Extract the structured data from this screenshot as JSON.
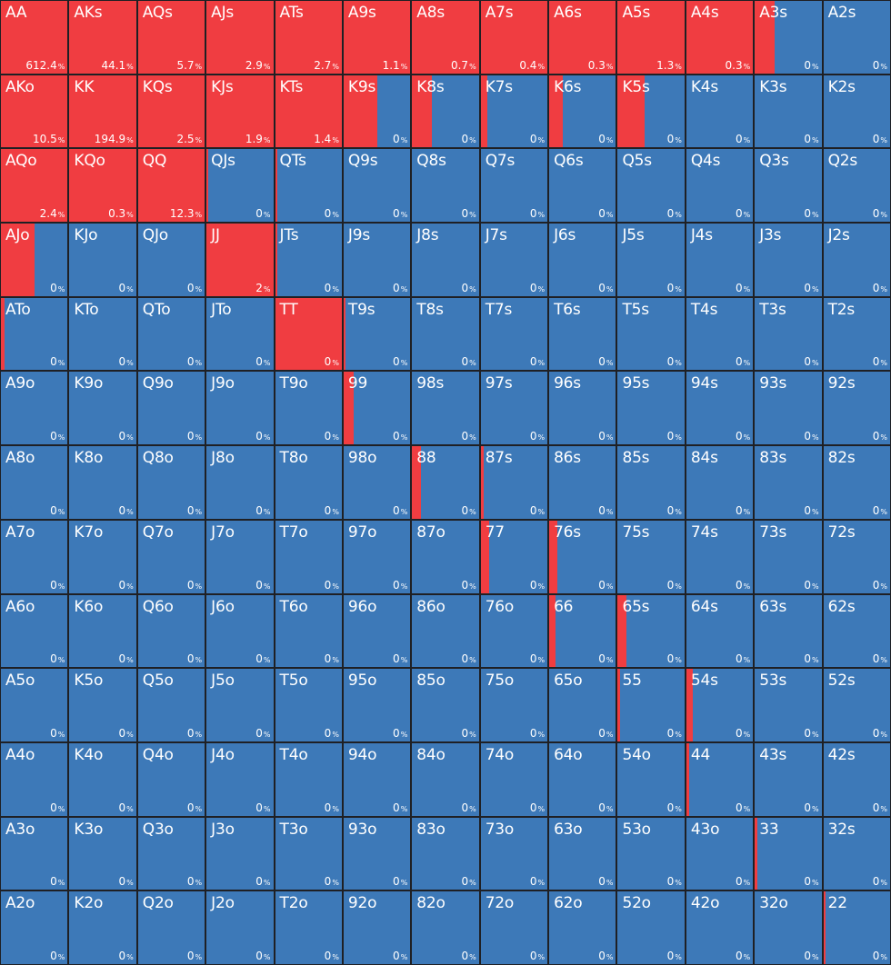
{
  "colors": {
    "action": "#f03d41",
    "other": "#3d79b8",
    "border": "#1f2024",
    "text": "#ffffff"
  },
  "percent_unit": "%",
  "rows": [
    [
      {
        "hand": "AA",
        "value": "612.4",
        "frac": 1
      },
      {
        "hand": "AKs",
        "value": "44.1",
        "frac": 1
      },
      {
        "hand": "AQs",
        "value": "5.7",
        "frac": 1
      },
      {
        "hand": "AJs",
        "value": "2.9",
        "frac": 1
      },
      {
        "hand": "ATs",
        "value": "2.7",
        "frac": 1
      },
      {
        "hand": "A9s",
        "value": "1.1",
        "frac": 1
      },
      {
        "hand": "A8s",
        "value": "0.7",
        "frac": 1
      },
      {
        "hand": "A7s",
        "value": "0.4",
        "frac": 1
      },
      {
        "hand": "A6s",
        "value": "0.3",
        "frac": 1
      },
      {
        "hand": "A5s",
        "value": "1.3",
        "frac": 1
      },
      {
        "hand": "A4s",
        "value": "0.3",
        "frac": 1
      },
      {
        "hand": "A3s",
        "value": "0",
        "frac": 0.3
      },
      {
        "hand": "A2s",
        "value": "0",
        "frac": 0
      }
    ],
    [
      {
        "hand": "AKo",
        "value": "10.5",
        "frac": 1
      },
      {
        "hand": "KK",
        "value": "194.9",
        "frac": 1
      },
      {
        "hand": "KQs",
        "value": "2.5",
        "frac": 1
      },
      {
        "hand": "KJs",
        "value": "1.9",
        "frac": 1
      },
      {
        "hand": "KTs",
        "value": "1.4",
        "frac": 1
      },
      {
        "hand": "K9s",
        "value": "0",
        "frac": 0.5
      },
      {
        "hand": "K8s",
        "value": "0",
        "frac": 0.3
      },
      {
        "hand": "K7s",
        "value": "0",
        "frac": 0.1
      },
      {
        "hand": "K6s",
        "value": "0",
        "frac": 0.2
      },
      {
        "hand": "K5s",
        "value": "0",
        "frac": 0.4
      },
      {
        "hand": "K4s",
        "value": "0",
        "frac": 0
      },
      {
        "hand": "K3s",
        "value": "0",
        "frac": 0
      },
      {
        "hand": "K2s",
        "value": "0",
        "frac": 0
      }
    ],
    [
      {
        "hand": "AQo",
        "value": "2.4",
        "frac": 1
      },
      {
        "hand": "KQo",
        "value": "0.3",
        "frac": 1
      },
      {
        "hand": "QQ",
        "value": "12.3",
        "frac": 1
      },
      {
        "hand": "QJs",
        "value": "0",
        "frac": 0.03
      },
      {
        "hand": "QTs",
        "value": "0",
        "frac": 0.03
      },
      {
        "hand": "Q9s",
        "value": "0",
        "frac": 0
      },
      {
        "hand": "Q8s",
        "value": "0",
        "frac": 0
      },
      {
        "hand": "Q7s",
        "value": "0",
        "frac": 0
      },
      {
        "hand": "Q6s",
        "value": "0",
        "frac": 0
      },
      {
        "hand": "Q5s",
        "value": "0",
        "frac": 0
      },
      {
        "hand": "Q4s",
        "value": "0",
        "frac": 0
      },
      {
        "hand": "Q3s",
        "value": "0",
        "frac": 0
      },
      {
        "hand": "Q2s",
        "value": "0",
        "frac": 0
      }
    ],
    [
      {
        "hand": "AJo",
        "value": "0",
        "frac": 0.5
      },
      {
        "hand": "KJo",
        "value": "0",
        "frac": 0
      },
      {
        "hand": "QJo",
        "value": "0",
        "frac": 0
      },
      {
        "hand": "JJ",
        "value": "2",
        "frac": 1
      },
      {
        "hand": "JTs",
        "value": "0",
        "frac": 0.03
      },
      {
        "hand": "J9s",
        "value": "0",
        "frac": 0
      },
      {
        "hand": "J8s",
        "value": "0",
        "frac": 0
      },
      {
        "hand": "J7s",
        "value": "0",
        "frac": 0
      },
      {
        "hand": "J6s",
        "value": "0",
        "frac": 0
      },
      {
        "hand": "J5s",
        "value": "0",
        "frac": 0
      },
      {
        "hand": "J4s",
        "value": "0",
        "frac": 0
      },
      {
        "hand": "J3s",
        "value": "0",
        "frac": 0
      },
      {
        "hand": "J2s",
        "value": "0",
        "frac": 0
      }
    ],
    [
      {
        "hand": "ATo",
        "value": "0",
        "frac": 0.06
      },
      {
        "hand": "KTo",
        "value": "0",
        "frac": 0
      },
      {
        "hand": "QTo",
        "value": "0",
        "frac": 0
      },
      {
        "hand": "JTo",
        "value": "0",
        "frac": 0
      },
      {
        "hand": "TT",
        "value": "0",
        "frac": 1
      },
      {
        "hand": "T9s",
        "value": "0",
        "frac": 0.03
      },
      {
        "hand": "T8s",
        "value": "0",
        "frac": 0
      },
      {
        "hand": "T7s",
        "value": "0",
        "frac": 0
      },
      {
        "hand": "T6s",
        "value": "0",
        "frac": 0
      },
      {
        "hand": "T5s",
        "value": "0",
        "frac": 0
      },
      {
        "hand": "T4s",
        "value": "0",
        "frac": 0
      },
      {
        "hand": "T3s",
        "value": "0",
        "frac": 0
      },
      {
        "hand": "T2s",
        "value": "0",
        "frac": 0
      }
    ],
    [
      {
        "hand": "A9o",
        "value": "0",
        "frac": 0
      },
      {
        "hand": "K9o",
        "value": "0",
        "frac": 0
      },
      {
        "hand": "Q9o",
        "value": "0",
        "frac": 0
      },
      {
        "hand": "J9o",
        "value": "0",
        "frac": 0
      },
      {
        "hand": "T9o",
        "value": "0",
        "frac": 0
      },
      {
        "hand": "99",
        "value": "0",
        "frac": 0.15
      },
      {
        "hand": "98s",
        "value": "0",
        "frac": 0
      },
      {
        "hand": "97s",
        "value": "0",
        "frac": 0
      },
      {
        "hand": "96s",
        "value": "0",
        "frac": 0
      },
      {
        "hand": "95s",
        "value": "0",
        "frac": 0
      },
      {
        "hand": "94s",
        "value": "0",
        "frac": 0
      },
      {
        "hand": "93s",
        "value": "0",
        "frac": 0
      },
      {
        "hand": "92s",
        "value": "0",
        "frac": 0
      }
    ],
    [
      {
        "hand": "A8o",
        "value": "0",
        "frac": 0
      },
      {
        "hand": "K8o",
        "value": "0",
        "frac": 0
      },
      {
        "hand": "Q8o",
        "value": "0",
        "frac": 0
      },
      {
        "hand": "J8o",
        "value": "0",
        "frac": 0
      },
      {
        "hand": "T8o",
        "value": "0",
        "frac": 0
      },
      {
        "hand": "98o",
        "value": "0",
        "frac": 0
      },
      {
        "hand": "88",
        "value": "0",
        "frac": 0.13
      },
      {
        "hand": "87s",
        "value": "0",
        "frac": 0.05
      },
      {
        "hand": "86s",
        "value": "0",
        "frac": 0
      },
      {
        "hand": "85s",
        "value": "0",
        "frac": 0
      },
      {
        "hand": "84s",
        "value": "0",
        "frac": 0
      },
      {
        "hand": "83s",
        "value": "0",
        "frac": 0
      },
      {
        "hand": "82s",
        "value": "0",
        "frac": 0
      }
    ],
    [
      {
        "hand": "A7o",
        "value": "0",
        "frac": 0
      },
      {
        "hand": "K7o",
        "value": "0",
        "frac": 0
      },
      {
        "hand": "Q7o",
        "value": "0",
        "frac": 0
      },
      {
        "hand": "J7o",
        "value": "0",
        "frac": 0
      },
      {
        "hand": "T7o",
        "value": "0",
        "frac": 0
      },
      {
        "hand": "97o",
        "value": "0",
        "frac": 0
      },
      {
        "hand": "87o",
        "value": "0",
        "frac": 0
      },
      {
        "hand": "77",
        "value": "0",
        "frac": 0.13
      },
      {
        "hand": "76s",
        "value": "0",
        "frac": 0.12
      },
      {
        "hand": "75s",
        "value": "0",
        "frac": 0
      },
      {
        "hand": "74s",
        "value": "0",
        "frac": 0
      },
      {
        "hand": "73s",
        "value": "0",
        "frac": 0
      },
      {
        "hand": "72s",
        "value": "0",
        "frac": 0
      }
    ],
    [
      {
        "hand": "A6o",
        "value": "0",
        "frac": 0
      },
      {
        "hand": "K6o",
        "value": "0",
        "frac": 0
      },
      {
        "hand": "Q6o",
        "value": "0",
        "frac": 0
      },
      {
        "hand": "J6o",
        "value": "0",
        "frac": 0
      },
      {
        "hand": "T6o",
        "value": "0",
        "frac": 0
      },
      {
        "hand": "96o",
        "value": "0",
        "frac": 0
      },
      {
        "hand": "86o",
        "value": "0",
        "frac": 0
      },
      {
        "hand": "76o",
        "value": "0",
        "frac": 0
      },
      {
        "hand": "66",
        "value": "0",
        "frac": 0.09
      },
      {
        "hand": "65s",
        "value": "0",
        "frac": 0.13
      },
      {
        "hand": "64s",
        "value": "0",
        "frac": 0
      },
      {
        "hand": "63s",
        "value": "0",
        "frac": 0
      },
      {
        "hand": "62s",
        "value": "0",
        "frac": 0
      }
    ],
    [
      {
        "hand": "A5o",
        "value": "0",
        "frac": 0
      },
      {
        "hand": "K5o",
        "value": "0",
        "frac": 0
      },
      {
        "hand": "Q5o",
        "value": "0",
        "frac": 0
      },
      {
        "hand": "J5o",
        "value": "0",
        "frac": 0
      },
      {
        "hand": "T5o",
        "value": "0",
        "frac": 0
      },
      {
        "hand": "95o",
        "value": "0",
        "frac": 0
      },
      {
        "hand": "85o",
        "value": "0",
        "frac": 0
      },
      {
        "hand": "75o",
        "value": "0",
        "frac": 0
      },
      {
        "hand": "65o",
        "value": "0",
        "frac": 0
      },
      {
        "hand": "55",
        "value": "0",
        "frac": 0.04
      },
      {
        "hand": "54s",
        "value": "0",
        "frac": 0.1
      },
      {
        "hand": "53s",
        "value": "0",
        "frac": 0
      },
      {
        "hand": "52s",
        "value": "0",
        "frac": 0
      }
    ],
    [
      {
        "hand": "A4o",
        "value": "0",
        "frac": 0
      },
      {
        "hand": "K4o",
        "value": "0",
        "frac": 0
      },
      {
        "hand": "Q4o",
        "value": "0",
        "frac": 0
      },
      {
        "hand": "J4o",
        "value": "0",
        "frac": 0
      },
      {
        "hand": "T4o",
        "value": "0",
        "frac": 0
      },
      {
        "hand": "94o",
        "value": "0",
        "frac": 0
      },
      {
        "hand": "84o",
        "value": "0",
        "frac": 0
      },
      {
        "hand": "74o",
        "value": "0",
        "frac": 0
      },
      {
        "hand": "64o",
        "value": "0",
        "frac": 0
      },
      {
        "hand": "54o",
        "value": "0",
        "frac": 0
      },
      {
        "hand": "44",
        "value": "0",
        "frac": 0.04
      },
      {
        "hand": "43s",
        "value": "0",
        "frac": 0
      },
      {
        "hand": "42s",
        "value": "0",
        "frac": 0
      }
    ],
    [
      {
        "hand": "A3o",
        "value": "0",
        "frac": 0
      },
      {
        "hand": "K3o",
        "value": "0",
        "frac": 0
      },
      {
        "hand": "Q3o",
        "value": "0",
        "frac": 0
      },
      {
        "hand": "J3o",
        "value": "0",
        "frac": 0
      },
      {
        "hand": "T3o",
        "value": "0",
        "frac": 0
      },
      {
        "hand": "93o",
        "value": "0",
        "frac": 0
      },
      {
        "hand": "83o",
        "value": "0",
        "frac": 0
      },
      {
        "hand": "73o",
        "value": "0",
        "frac": 0
      },
      {
        "hand": "63o",
        "value": "0",
        "frac": 0
      },
      {
        "hand": "53o",
        "value": "0",
        "frac": 0
      },
      {
        "hand": "43o",
        "value": "0",
        "frac": 0
      },
      {
        "hand": "33",
        "value": "0",
        "frac": 0.04
      },
      {
        "hand": "32s",
        "value": "0",
        "frac": 0
      }
    ],
    [
      {
        "hand": "A2o",
        "value": "0",
        "frac": 0
      },
      {
        "hand": "K2o",
        "value": "0",
        "frac": 0
      },
      {
        "hand": "Q2o",
        "value": "0",
        "frac": 0
      },
      {
        "hand": "J2o",
        "value": "0",
        "frac": 0
      },
      {
        "hand": "T2o",
        "value": "0",
        "frac": 0
      },
      {
        "hand": "92o",
        "value": "0",
        "frac": 0
      },
      {
        "hand": "82o",
        "value": "0",
        "frac": 0
      },
      {
        "hand": "72o",
        "value": "0",
        "frac": 0
      },
      {
        "hand": "62o",
        "value": "0",
        "frac": 0
      },
      {
        "hand": "52o",
        "value": "0",
        "frac": 0
      },
      {
        "hand": "42o",
        "value": "0",
        "frac": 0
      },
      {
        "hand": "32o",
        "value": "0",
        "frac": 0
      },
      {
        "hand": "22",
        "value": "0",
        "frac": 0.03
      }
    ]
  ]
}
